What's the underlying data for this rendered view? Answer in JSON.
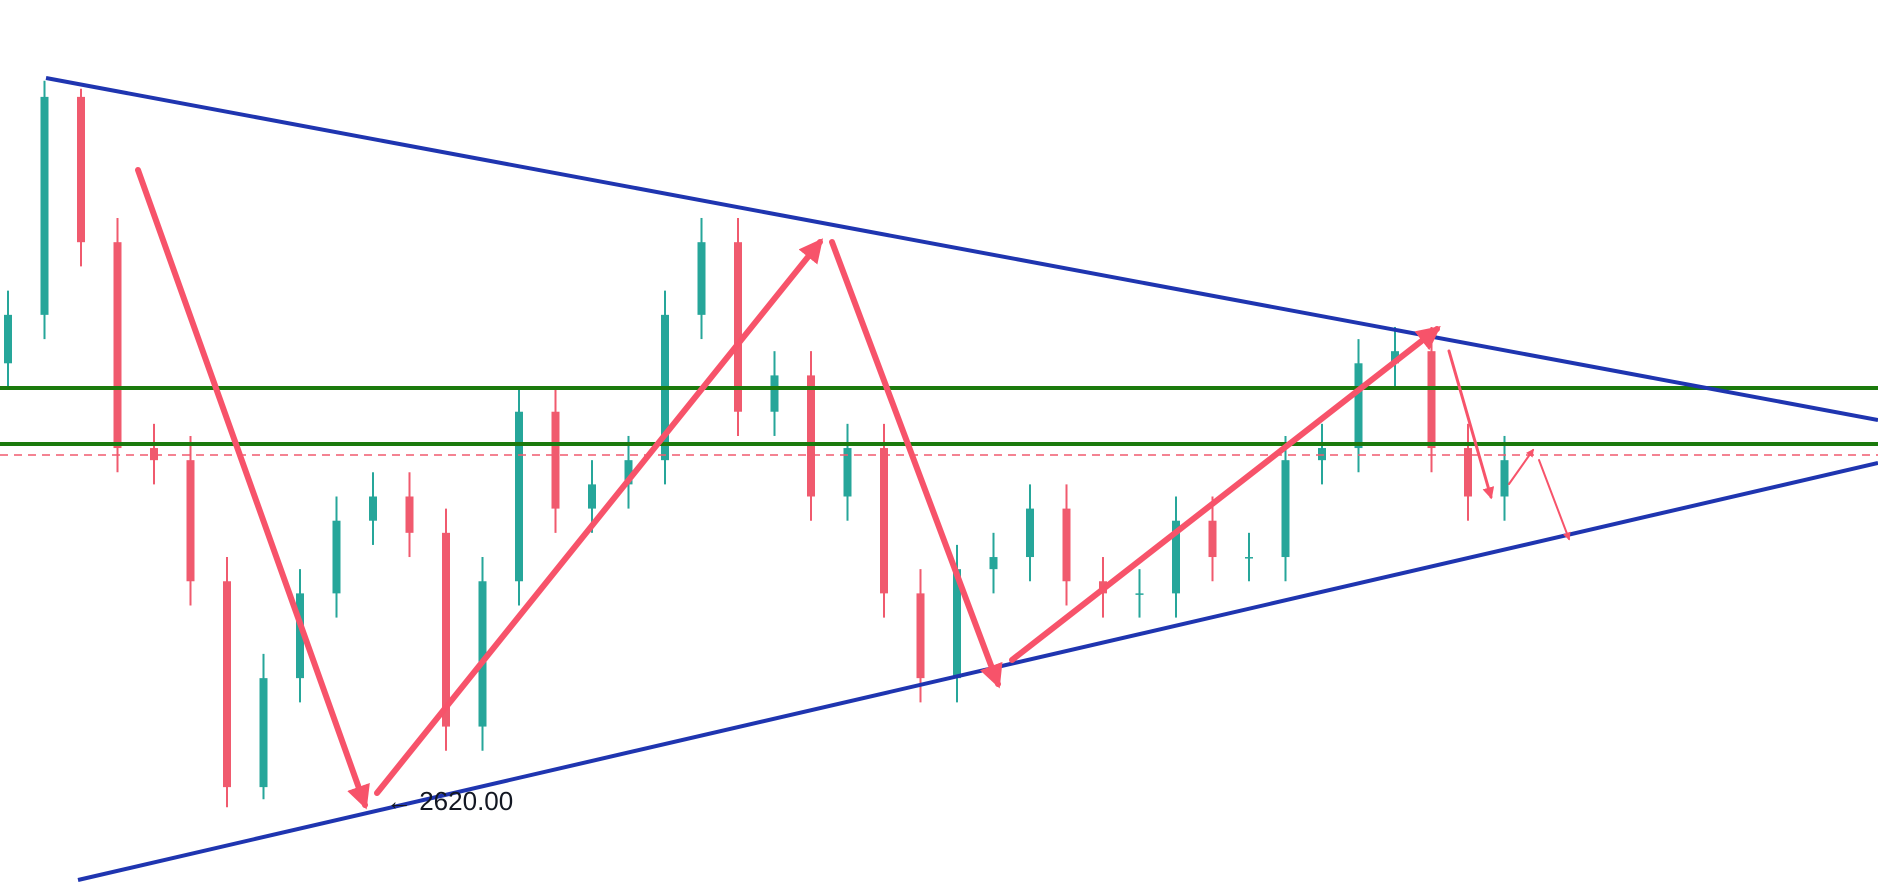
{
  "chart_data": {
    "type": "candlestick",
    "annotation": "← 2620.00",
    "ylim": [
      2601,
      2820
    ],
    "up_color": "#26a69a",
    "down_color": "#f05a6e",
    "open": [
      2730,
      2742,
      2796,
      2760,
      2709,
      2706,
      2676,
      2625,
      2652,
      2673,
      2691,
      2697,
      2688,
      2640,
      2676,
      2718,
      2694,
      2700,
      2706,
      2742,
      2760,
      2718,
      2727,
      2697,
      2709,
      2673,
      2652,
      2679,
      2682,
      2694,
      2676,
      2673,
      2673,
      2691,
      2682,
      2682,
      2706,
      2709,
      2730,
      2733,
      2709,
      2697
    ],
    "high": [
      2748,
      2800,
      2798,
      2766,
      2715,
      2712,
      2682,
      2658,
      2679,
      2697,
      2703,
      2703,
      2694,
      2682,
      2724,
      2724,
      2706,
      2712,
      2748,
      2766,
      2766,
      2733,
      2733,
      2715,
      2715,
      2679,
      2685,
      2688,
      2700,
      2700,
      2682,
      2679,
      2697,
      2697,
      2688,
      2712,
      2715,
      2736,
      2739,
      2739,
      2715,
      2712
    ],
    "low": [
      2724,
      2736,
      2754,
      2703,
      2700,
      2670,
      2620,
      2622,
      2646,
      2667,
      2685,
      2682,
      2634,
      2634,
      2670,
      2688,
      2688,
      2694,
      2700,
      2736,
      2712,
      2712,
      2691,
      2691,
      2667,
      2646,
      2646,
      2673,
      2676,
      2670,
      2667,
      2667,
      2667,
      2676,
      2676,
      2676,
      2700,
      2703,
      2724,
      2703,
      2691,
      2691
    ],
    "close": [
      2742,
      2796,
      2760,
      2709,
      2706,
      2676,
      2625,
      2652,
      2673,
      2691,
      2697,
      2688,
      2640,
      2676,
      2718,
      2694,
      2700,
      2706,
      2742,
      2760,
      2718,
      2727,
      2697,
      2709,
      2673,
      2652,
      2679,
      2682,
      2694,
      2676,
      2673,
      2673,
      2691,
      2682,
      2682,
      2706,
      2709,
      2730,
      2733,
      2709,
      2697,
      2706
    ]
  }
}
